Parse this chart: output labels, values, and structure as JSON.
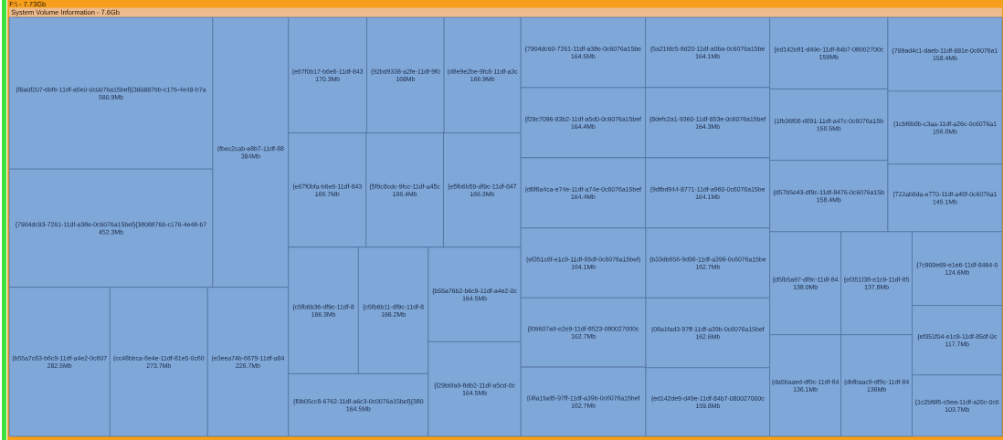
{
  "chart_data": {
    "type": "other",
    "title": "F:\\ - 7.73Gb",
    "subtitle": "System Volume Information - 7.6Gb",
    "color": "#7fa8d8",
    "categories": [
      "{f8a0f207-6bf6-11df-a5e0-0c0076a15bef}{3808876b-c176-4e48-b7a",
      "{7904dc93-7261-11df-a38e-0c6076a15bef}{3808876b-c176-4e48-b7",
      "{fbec2cab-e8b7-11df-88",
      "{b55a7c83-b6c9-11df-a4e2-0c607",
      "{cc48bbca-6e4e-11df-81e5-0c60",
      "{e3eea74b-6679-11df-a84",
      "{e67f0b17-b6e6-11df-843",
      "{92bd9338-a2fe-11df-9f0",
      "{d8e9e2be-9fc8-11df-a3c",
      "{e67f0bfa-b6e6-11df-843",
      "{5f9c8cdc-9fcc-11df-a45c",
      "{e5fb6b59-df9c-11df-847",
      "{c5fb6b36-df9c-11df-8",
      "{c5fb6b11-df9c-11df-8",
      "{f0b05cc8-6762-11df-a6c3-0c0076a15bef}{380",
      "{b55a76b2-b6c9-11df-a4e2-0c",
      "{f29b6fa9-8db2-11df-a5cd-0c",
      "{7904dc60-7261-11df-a38e-0c6076a15be",
      "{f29c7096-83b2-11df-a5d0-0c6076a15bef",
      "{d6f6a4ca-e74e-11df-a74e-0c6076a15bef",
      "{5a21fdc5-8d20-11df-a0ba-0c6076a15be",
      "{8defc2a1-9360-11df-853e-0c6076a15bef",
      "{9dfbd944-8771-11df-a960-0c6076a15be",
      "{ef351c6f-e1c9-11df-85df-0c6076a15bef}",
      "{f09607a9-e2e9-11df-8523-080027000c",
      "{08a1fad5-97ff-11df-a39b-0c6076a15bef",
      "{b33db656-9d98-11df-a398-0c6076a15be",
      "{08a1fad3-97ff-11df-a39b-0c6076a15bef",
      "{ed142de9-d49e-11df-84b7-080027000c",
      "{ed142e81-d49e-11df-84b7-08002700c",
      "{1fb36f08-d891-11df-a47c-0c6076a15b",
      "{d57b5e43-df9c-11df-8476-0c6076a15b",
      "{789ad4c1-daeb-11df-881e-0c6076a1",
      "{1cbf6b8b-c3aa-11df-a26c-0c6076a1",
      "{722ab8da-e770-11df-a48f-0c6076a1",
      "{d5fb5a97-df9c-11df-84",
      "{ef351f38-e1c9-11df-85",
      "{da5baaed-df9c-11df-84",
      "{dbfbaac9-df9c-11df-84",
      "{7c900e69-e1e6-11df-8464-0",
      "{ef351f04-e1c9-11df-85df-0c",
      "{1c2bf8f5-c5ea-11df-a26c-0c6"
    ],
    "values": [
      580.9,
      452.3,
      384,
      282.5,
      273.7,
      226.7,
      170.3,
      168,
      166.9,
      166.7,
      166.4,
      166.3,
      166.3,
      166.2,
      164.5,
      164.5,
      164.5,
      164.5,
      164.4,
      164.4,
      164.1,
      164.3,
      164.1,
      164.1,
      162.7,
      162.7,
      162.7,
      162.6,
      159.8,
      159,
      158.5,
      158.4,
      158.4,
      156.8,
      145.1,
      138,
      137.8,
      136.1,
      136,
      124.6,
      117.7,
      103.7
    ],
    "value_labels": [
      "580.9Mb",
      "452.3Mb",
      "384Mb",
      "282.5Mb",
      "273.7Mb",
      "226.7Mb",
      "170.3Mb",
      "168Mb",
      "166.9Mb",
      "166.7Mb",
      "166.4Mb",
      "166.3Mb",
      "166.3Mb",
      "166.2Mb",
      "164.5Mb",
      "164.5Mb",
      "164.5Mb",
      "164.5Mb",
      "164.4Mb",
      "164.4Mb",
      "164.1Mb",
      "164.3Mb",
      "164.1Mb",
      "164.1Mb",
      "162.7Mb",
      "162.7Mb",
      "162.7Mb",
      "162.6Mb",
      "159.8Mb",
      "159Mb",
      "158.5Mb",
      "158.4Mb",
      "158.4Mb",
      "156.8Mb",
      "145.1Mb",
      "138.0Mb",
      "137.8Mb",
      "136.1Mb",
      "136Mb",
      "124.6Mb",
      "117.7Mb",
      "103.7Mb"
    ]
  }
}
